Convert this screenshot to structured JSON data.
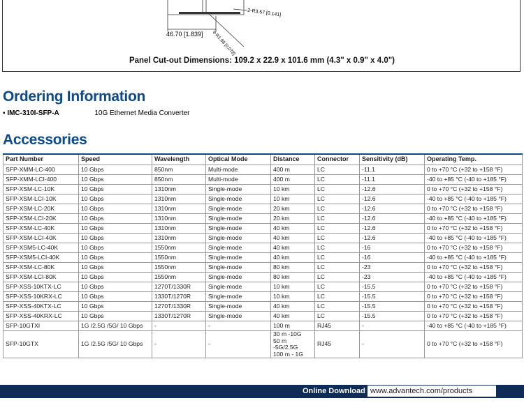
{
  "panel": {
    "labels": [
      "2-R3.57 [0.141]",
      "46.70 [1.839]",
      "8-R1.98 [0.078]"
    ],
    "caption": "Panel Cut-out Dimensions: 109.2 x 22.9 x 101.6 mm (4.3\" x 0.9\" x 4.0\")"
  },
  "ordering": {
    "title": "Ordering Information",
    "items": [
      {
        "part": "IMC-310I-SFP-A",
        "description": "10G Ethernet Media Converter"
      }
    ]
  },
  "accessories": {
    "title": "Accessories",
    "table": {
      "headers": [
        "Part Number",
        "Speed",
        "Wavelength",
        "Optical Mode",
        "Distance",
        "Connector",
        "Sensitivity (dB)",
        "Operating Temp."
      ],
      "rows": [
        [
          "SFP-XMM-LC-400",
          "10 Gbps",
          "850nm",
          "Multi-mode",
          "400 m",
          "LC",
          "-11.1",
          "0 to +70 °C (+32 to +158 °F)"
        ],
        [
          "SFP-XMM-LCI-400",
          "10 Gbps",
          "850nm",
          "Multi-mode",
          "400 m",
          "LC",
          "-11.1",
          "-40 to +85 °C (-40 to +185 °F)"
        ],
        [
          "SFP-XSM-LC-10K",
          "10 Gbps",
          "1310nm",
          "Single-mode",
          "10 km",
          "LC",
          "-12.6",
          "0 to +70 °C (+32 to +158 °F)"
        ],
        [
          "SFP-XSM-LCI-10K",
          "10 Gbps",
          "1310nm",
          "Single-mode",
          "10 km",
          "LC",
          "-12.6",
          "-40 to +85 °C (-40 to +185 °F)"
        ],
        [
          "SFP-XSM-LC-20K",
          "10 Gbps",
          "1310nm",
          "Single-mode",
          "20 km",
          "LC",
          "-12.6",
          "0 to +70 °C (+32 to +158 °F)"
        ],
        [
          "SFP-XSM-LCI-20K",
          "10 Gbps",
          "1310nm",
          "Single-mode",
          "20 km",
          "LC",
          "-12.6",
          "-40 to +85 °C (-40 to +185 °F)"
        ],
        [
          "SFP-XSM-LC-40K",
          "10 Gbps",
          "1310nm",
          "Single-mode",
          "40 km",
          "LC",
          "-12.6",
          "0 to +70 °C (+32 to +158 °F)"
        ],
        [
          "SFP-XSM-LCI-40K",
          "10 Gbps",
          "1310nm",
          "Single-mode",
          "40 km",
          "LC",
          "-12.6",
          "-40 to +85 °C (-40 to +185 °F)"
        ],
        [
          "SFP-XSM5-LC-40K",
          "10 Gbps",
          "1550nm",
          "Single-mode",
          "40 km",
          "LC",
          "-16",
          "0 to +70 °C (+32 to +158 °F)"
        ],
        [
          "SFP-XSM5-LCI-40K",
          "10 Gbps",
          "1550nm",
          "Single-mode",
          "40 km",
          "LC",
          "-16",
          "-40 to +85 °C (-40 to +185 °F)"
        ],
        [
          "SFP-XSM-LC-80K",
          "10 Gbps",
          "1550nm",
          "Single-mode",
          "80 km",
          "LC",
          "-23",
          "0 to +70 °C (+32 to +158 °F)"
        ],
        [
          "SFP-XSM-LCI-80K",
          "10 Gbps",
          "1550nm",
          "Single-mode",
          "80 km",
          "LC",
          "-23",
          "-40 to +85 °C (-40 to +185 °F)"
        ],
        [
          "SFP-XSS-10KTX-LC",
          "10 Gbps",
          "1270T/1330R",
          "Single-mode",
          "10 km",
          "LC",
          "-15.5",
          "0 to +70 °C (+32 to +158 °F)"
        ],
        [
          "SFP-XSS-10KRX-LC",
          "10 Gbps",
          "1330T/1270R",
          "Single-mode",
          "10 km",
          "LC",
          "-15.5",
          "0 to +70 °C (+32 to +158 °F)"
        ],
        [
          "SFP-XSS-40KTX-LC",
          "10 Gbps",
          "1270T/1330R",
          "Single-mode",
          "40 km",
          "LC",
          "-15.5",
          "0 to +70 °C (+32 to +158 °F)"
        ],
        [
          "SFP-XSS-40KRX-LC",
          "10 Gbps",
          "1330T/1270R",
          "Single-mode",
          "40 km",
          "LC",
          "-15.5",
          "0 to +70 °C (+32 to +158 °F)"
        ],
        [
          "SFP-10GTXI",
          "1G /2.5G /5G/ 10 Gbps",
          "-",
          "-",
          "100 m",
          "RJ45",
          "-",
          "-40 to +85 °C (-40 to +185 °F)"
        ],
        [
          "SFP-10GTX",
          "1G /2.5G /5G/ 10 Gbps",
          "-",
          "-",
          "30 m -10G\n50 m\n-5G/2.5G\n100 m - 1G",
          "RJ45",
          "-",
          "0 to +70 °C (+32 to +158 °F)"
        ]
      ]
    }
  },
  "footer": {
    "label": "Online Download",
    "url": "www.advantech.com/products"
  }
}
